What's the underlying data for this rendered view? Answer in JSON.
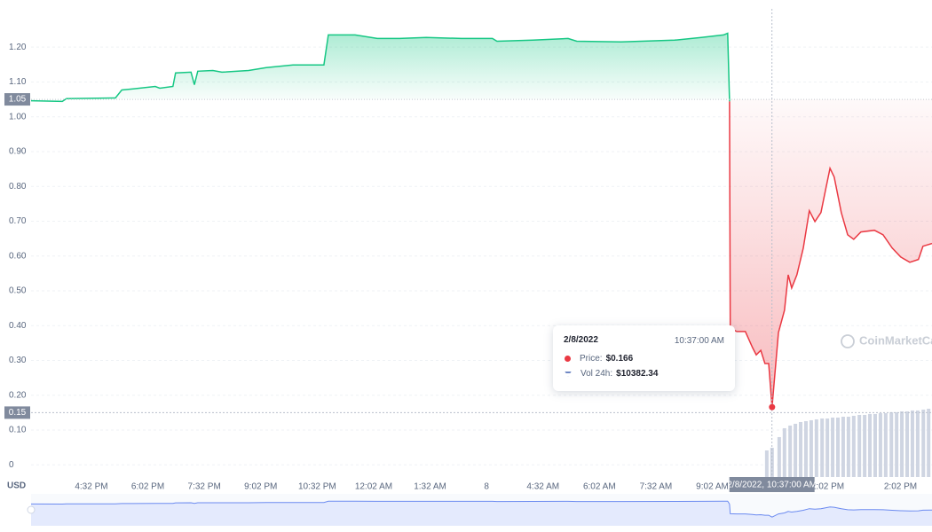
{
  "chart_data": {
    "type": "line",
    "currency": "USD",
    "watermark": "CoinMarketCap",
    "xlim": [
      14.93,
      38.87
    ],
    "ylim": [
      -0.035,
      1.31
    ],
    "y2lim": [
      0,
      166000
    ],
    "grid": true,
    "xticks": [
      {
        "value": 16.533,
        "label": "4:32 PM"
      },
      {
        "value": 18.033,
        "label": "6:02 PM"
      },
      {
        "value": 19.533,
        "label": "7:32 PM"
      },
      {
        "value": 21.033,
        "label": "9:02 PM"
      },
      {
        "value": 22.533,
        "label": "10:32 PM"
      },
      {
        "value": 24.033,
        "label": "12:02 AM"
      },
      {
        "value": 25.533,
        "label": "1:32 AM"
      },
      {
        "value": 27.033,
        "label": "8"
      },
      {
        "value": 28.533,
        "label": "4:32 AM"
      },
      {
        "value": 30.033,
        "label": "6:02 AM"
      },
      {
        "value": 31.533,
        "label": "7:32 AM"
      },
      {
        "value": 33.033,
        "label": "9:02 AM"
      },
      {
        "value": 34.533,
        "label": "10:32 AM"
      },
      {
        "value": 36.033,
        "label": "12:02 PM"
      },
      {
        "value": 38.033,
        "label": "2:02 PM"
      }
    ],
    "yticks": [
      0,
      {
        "value": 0.1,
        "label": "0.10"
      },
      {
        "value": 0.2,
        "label": "0.20"
      },
      {
        "value": 0.3,
        "label": "0.30"
      },
      {
        "value": 0.4,
        "label": "0.40"
      },
      {
        "value": 0.5,
        "label": "0.50"
      },
      {
        "value": 0.6,
        "label": "0.60"
      },
      {
        "value": 0.7,
        "label": "0.70"
      },
      {
        "value": 0.8,
        "label": "0.80"
      },
      {
        "value": 0.9,
        "label": "0.90"
      },
      {
        "value": 1.0,
        "label": "1.00"
      },
      {
        "value": 1.1,
        "label": "1.10"
      },
      {
        "value": 1.2,
        "label": "1.20"
      }
    ],
    "baseline": {
      "value": 1.05,
      "label": "1.05"
    },
    "series": [
      {
        "color": "#16c784",
        "x": [
          14.93,
          15.76,
          15.87,
          17.17,
          17.34,
          17.64,
          18.23,
          18.35,
          18.7,
          18.77,
          19.18,
          19.27,
          19.36,
          19.76,
          20.0,
          20.71,
          21.18,
          21.89,
          22.71,
          22.83,
          23.54,
          24.13,
          24.72,
          25.43,
          26.37,
          27.19,
          27.31,
          28.26,
          29.2,
          29.43,
          30.61,
          32.03,
          32.74,
          33.33,
          33.44,
          33.49
        ],
        "values": [
          1.046,
          1.044,
          1.052,
          1.054,
          1.077,
          1.08,
          1.087,
          1.082,
          1.087,
          1.126,
          1.128,
          1.092,
          1.131,
          1.133,
          1.128,
          1.133,
          1.141,
          1.149,
          1.149,
          1.235,
          1.235,
          1.225,
          1.225,
          1.228,
          1.225,
          1.225,
          1.217,
          1.22,
          1.225,
          1.217,
          1.215,
          1.22,
          1.228,
          1.235,
          1.24,
          1.044
        ]
      },
      {
        "color": "#ea3943",
        "x": [
          33.49,
          33.51,
          33.68,
          33.91,
          34.1,
          34.2,
          34.32,
          34.43,
          34.53,
          34.62,
          34.79,
          34.95,
          35.05,
          35.14,
          35.28,
          35.45,
          35.61,
          35.76,
          35.92,
          36.04,
          36.16,
          36.27,
          36.46,
          36.63,
          36.79,
          36.98,
          37.34,
          37.57,
          37.81,
          38.04,
          38.28,
          38.51,
          38.63,
          38.87
        ],
        "values": [
          1.044,
          0.393,
          0.383,
          0.383,
          0.337,
          0.316,
          0.329,
          0.291,
          0.291,
          0.166,
          0.38,
          0.444,
          0.546,
          0.508,
          0.546,
          0.623,
          0.73,
          0.699,
          0.725,
          0.789,
          0.852,
          0.827,
          0.725,
          0.661,
          0.648,
          0.669,
          0.674,
          0.661,
          0.623,
          0.597,
          0.582,
          0.59,
          0.628,
          0.636
        ]
      },
      {
        "type": "bar",
        "axis": "y2",
        "color": "#cfd5e2",
        "x": [
          34.48,
          34.62,
          34.81,
          34.95,
          35.1,
          35.24,
          35.38,
          35.52,
          35.66,
          35.8,
          35.95,
          36.09,
          36.23,
          36.37,
          36.51,
          36.65,
          36.79,
          36.94,
          37.08,
          37.22,
          37.36,
          37.5,
          37.64,
          37.79,
          37.93,
          38.07,
          38.21,
          38.35,
          38.49,
          38.64,
          38.78
        ],
        "values": [
          9440,
          10382.34,
          14160,
          17300,
          18250,
          18880,
          19500,
          19820,
          20130,
          20450,
          20760,
          20760,
          21080,
          21080,
          21390,
          21390,
          21710,
          22020,
          22020,
          22340,
          22340,
          22650,
          22650,
          22970,
          22970,
          23280,
          23280,
          23600,
          23600,
          23910,
          24220
        ]
      }
    ],
    "crosshair": {
      "x": 34.617,
      "y": {
        "value": 0.15,
        "label": "0.15"
      },
      "x_label": "2/8/2022, 10:37:00 AM"
    },
    "tooltip": {
      "date": "2/8/2022",
      "time": "10:37:00 AM",
      "price_label": "Price:",
      "price": "$0.166",
      "volume_label": "Vol 24h:",
      "volume": "$10382.34"
    }
  }
}
